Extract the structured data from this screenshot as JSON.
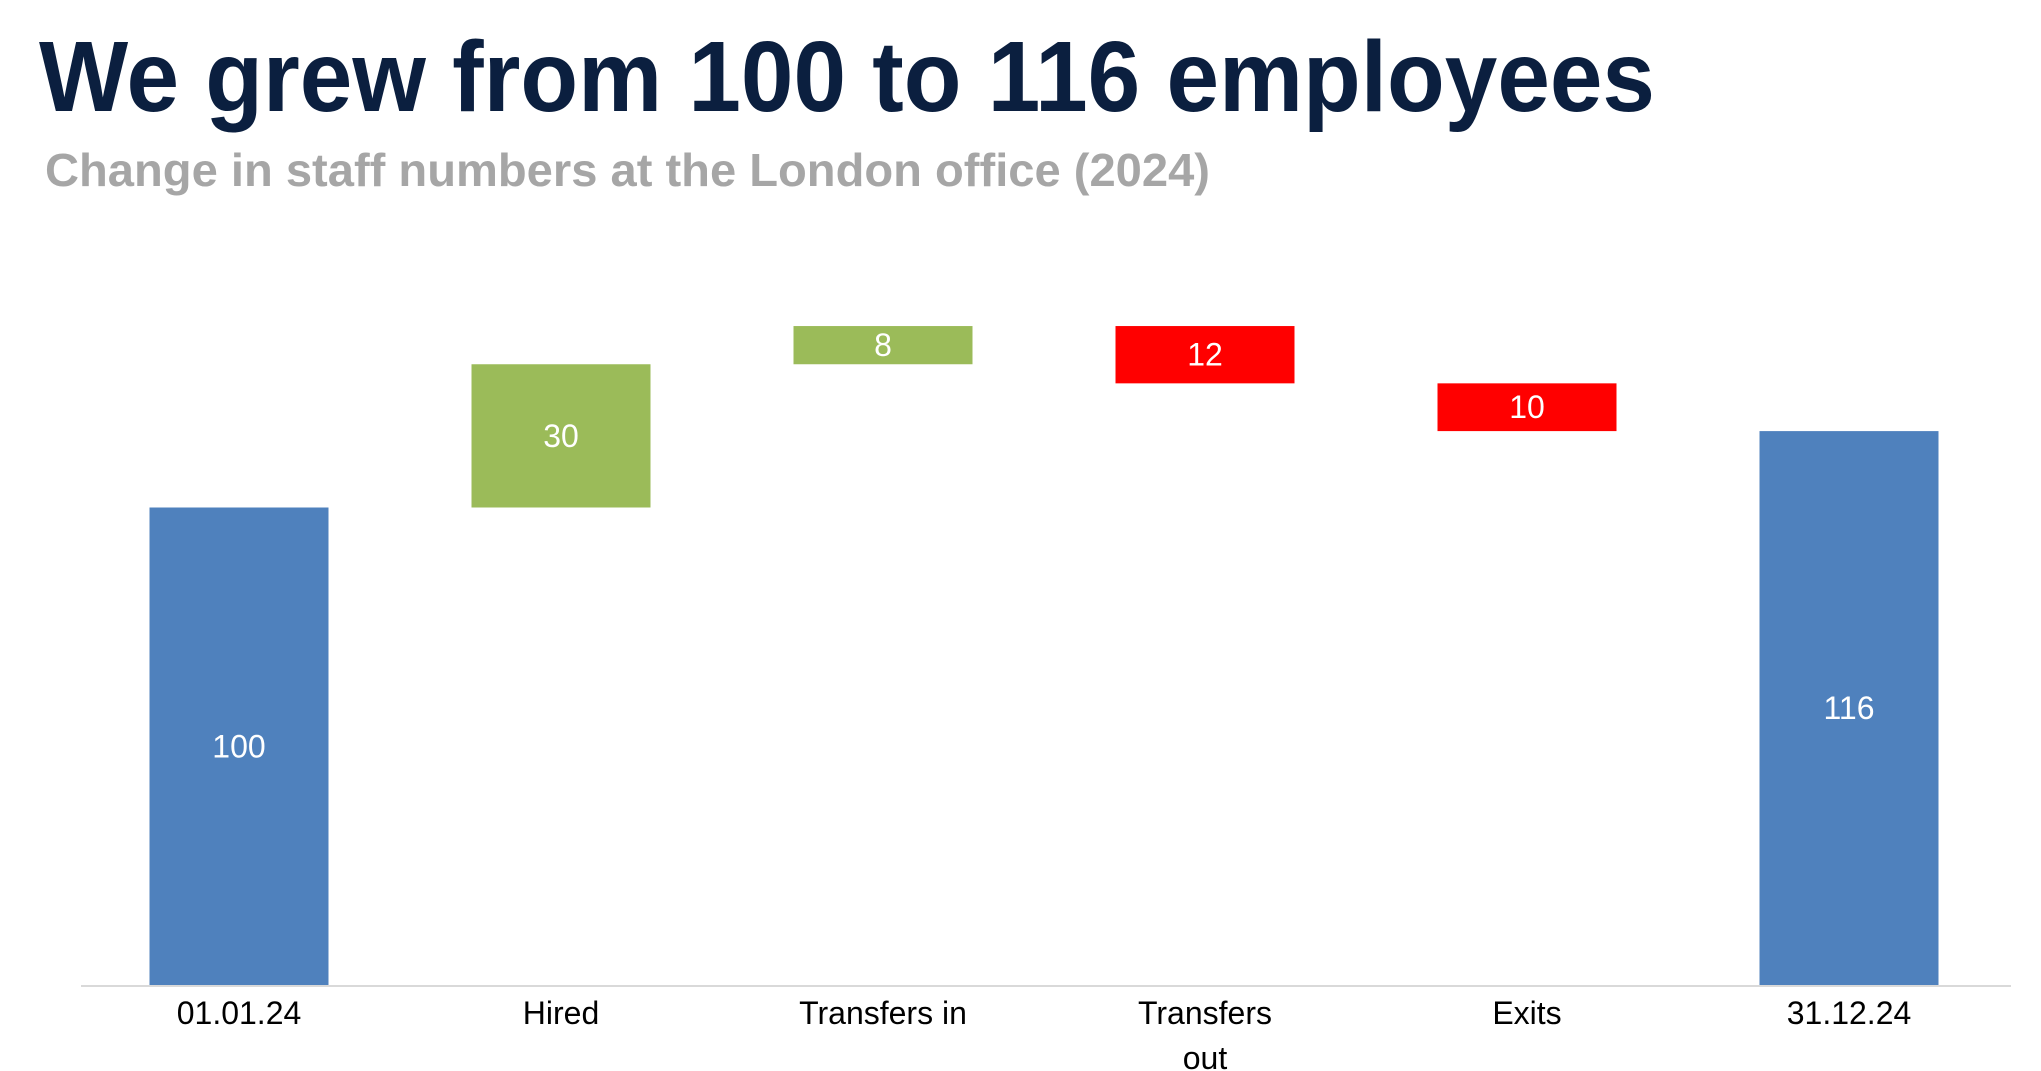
{
  "title": "We grew from 100 to 116 employees",
  "subtitle": "Change in staff numbers at the London office (2024)",
  "colors": {
    "title": "#0b1f3f",
    "subtitle": "#a6a6a6",
    "total": "#4f81bd",
    "increase": "#9bbb59",
    "decrease": "#ff0000",
    "axis": "#d9d9d9"
  },
  "chart_data": {
    "type": "bar",
    "subtype": "waterfall",
    "title": "We grew from 100 to 116 employees",
    "subtitle": "Change in staff numbers at the London office (2024)",
    "xlabel": "",
    "ylabel": "",
    "ylim": [
      0,
      145
    ],
    "grid": false,
    "legend": "none",
    "categories": [
      [
        "01.01.24"
      ],
      [
        "Hired"
      ],
      [
        "Transfers in"
      ],
      [
        "Transfers",
        "out"
      ],
      [
        "Exits"
      ],
      [
        "31.12.24"
      ]
    ],
    "values": [
      100,
      30,
      8,
      -12,
      -10,
      116
    ],
    "kinds": [
      "total",
      "increase",
      "increase",
      "decrease",
      "decrease",
      "total"
    ],
    "data_labels": [
      "100",
      "30",
      "8",
      "12",
      "10",
      "116"
    ]
  }
}
